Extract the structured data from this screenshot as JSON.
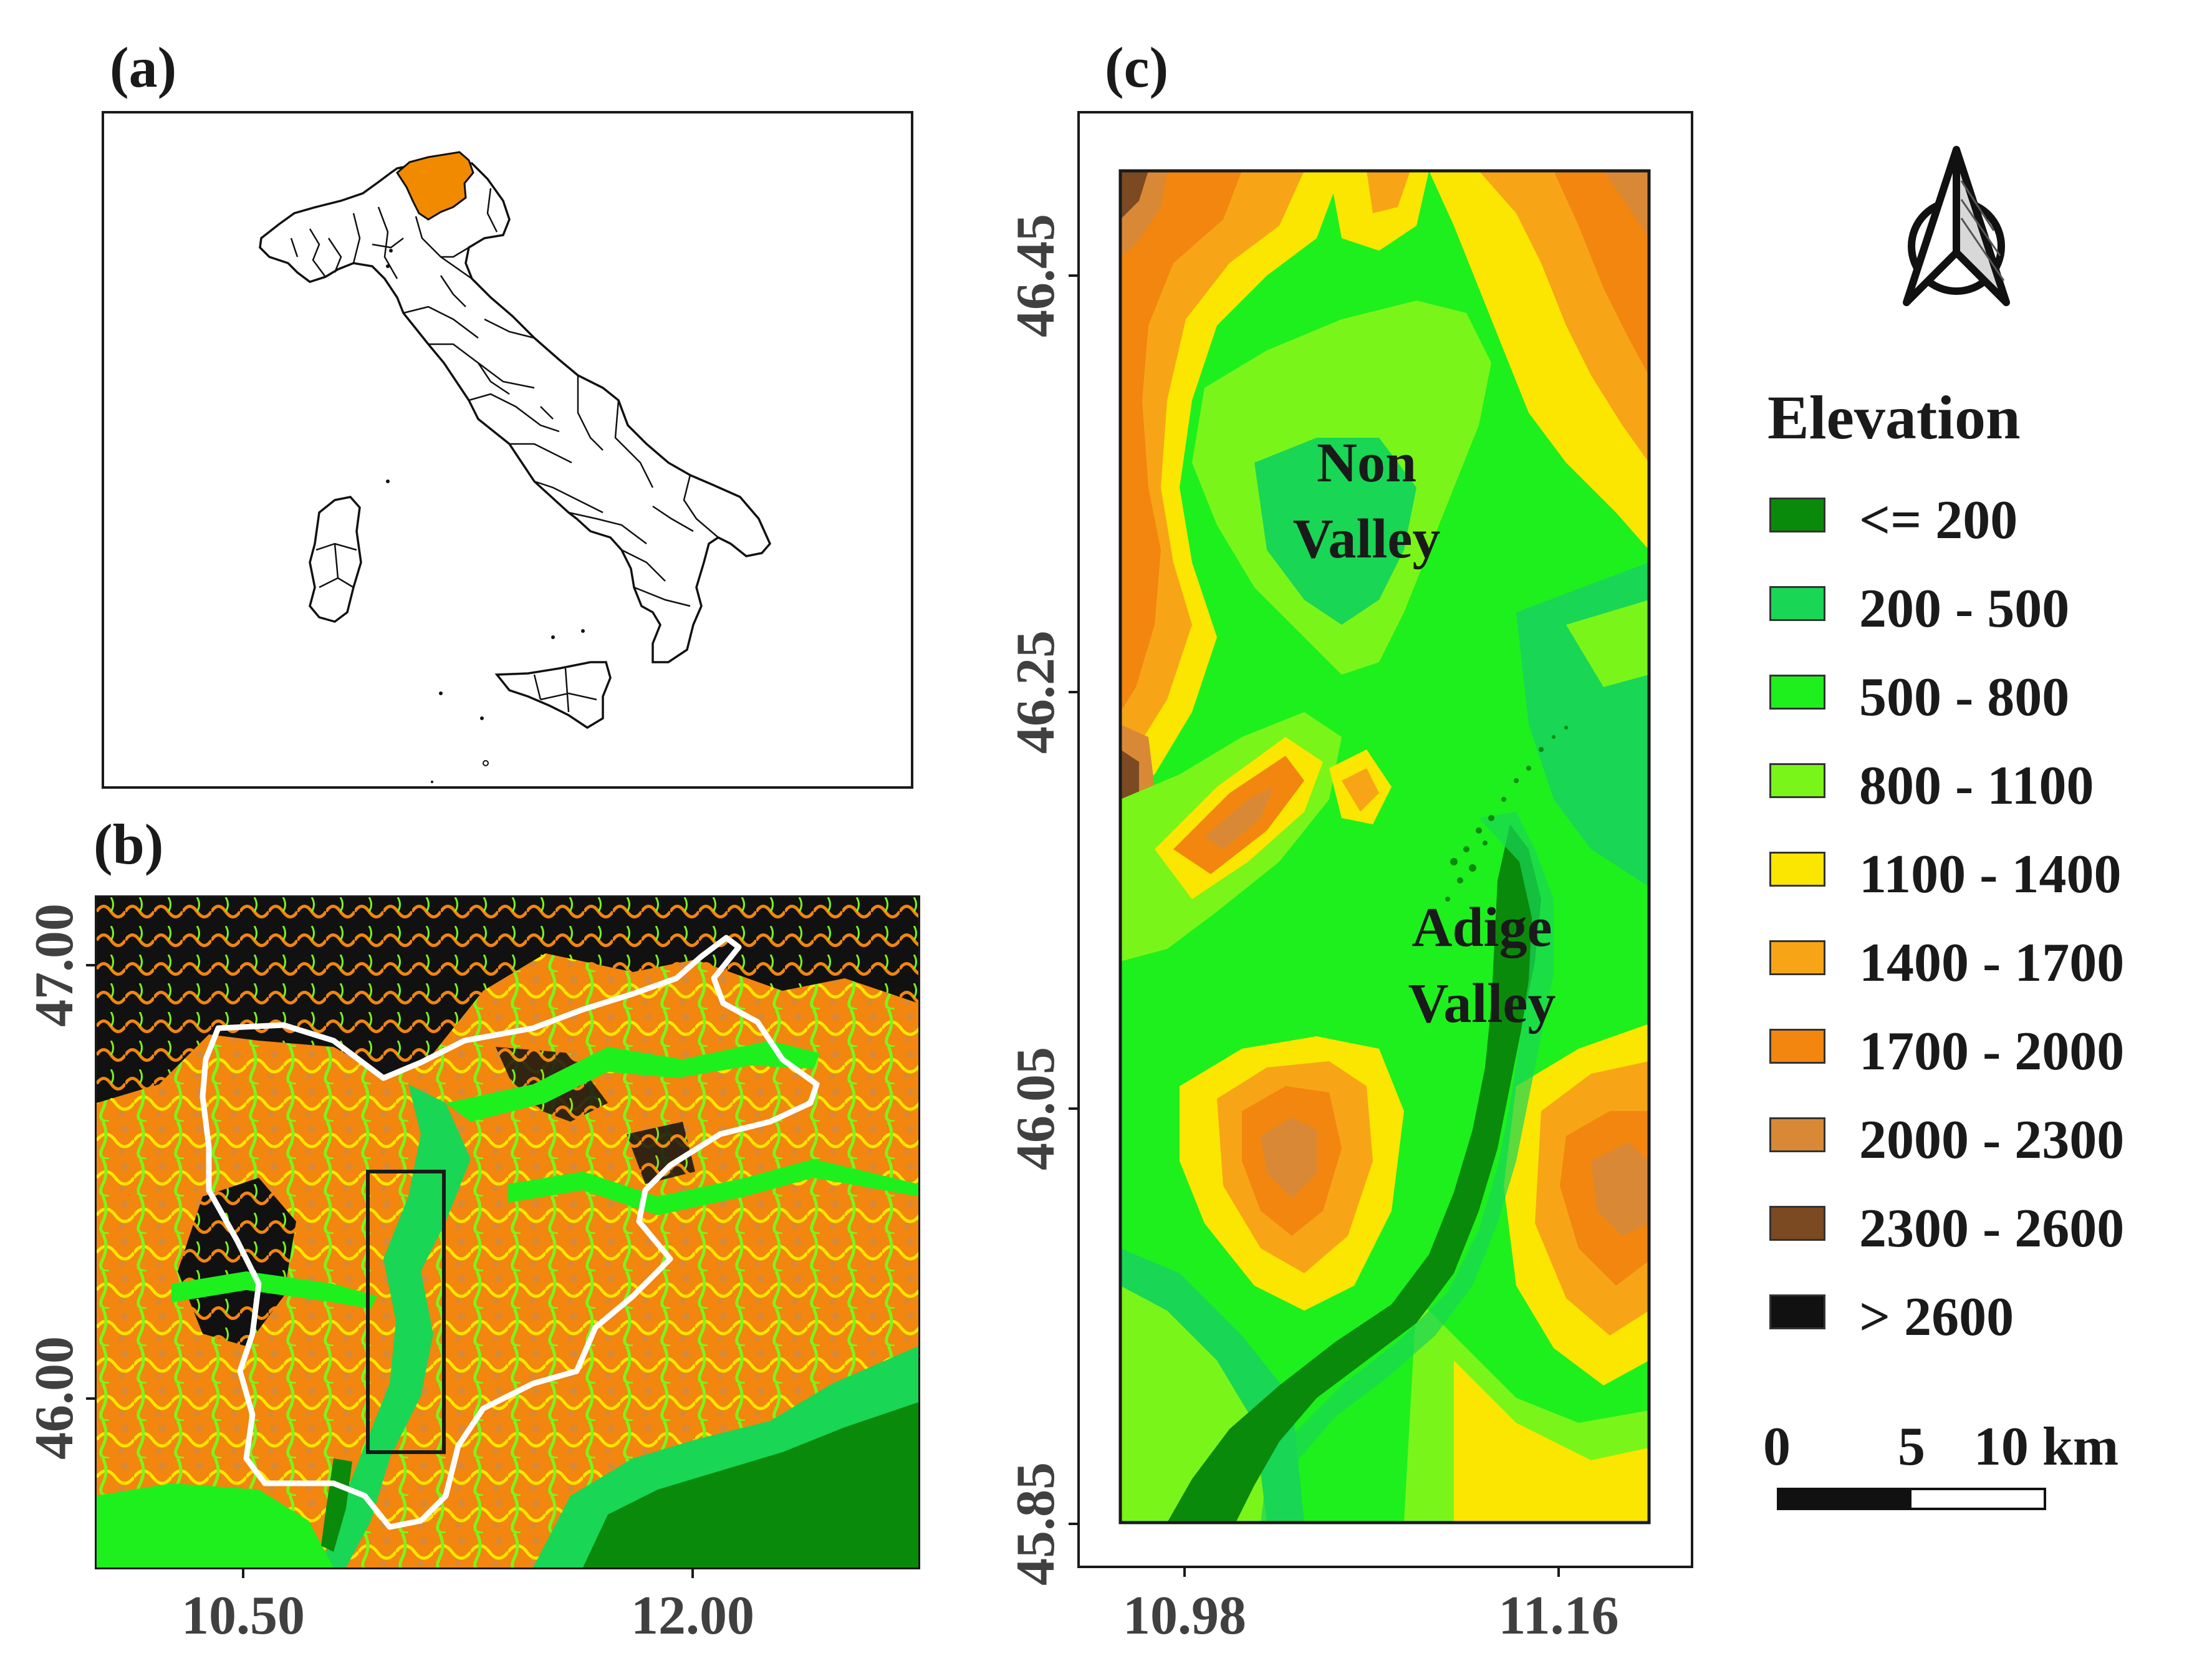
{
  "panels": {
    "a": {
      "label": "(a)",
      "highlighted_region_color": "#f28a00"
    },
    "b": {
      "label": "(b)",
      "y_ticks": [
        "47.00",
        "46.00"
      ],
      "x_ticks": [
        "10.50",
        "12.00"
      ]
    },
    "c": {
      "label": "(c)",
      "y_ticks": [
        "46.45",
        "46.25",
        "46.05",
        "45.85"
      ],
      "x_ticks": [
        "10.98",
        "11.16"
      ],
      "places": [
        {
          "line1": "Non",
          "line2": "Valley"
        },
        {
          "line1": "Adige",
          "line2": "Valley"
        }
      ]
    }
  },
  "north_arrow": {
    "icon": "north-arrow-icon"
  },
  "legend": {
    "title": "Elevation",
    "classes": [
      {
        "label": "<= 200",
        "color": "#0a8a0a"
      },
      {
        "label": "200 - 500",
        "color": "#19d655"
      },
      {
        "label": "500 - 800",
        "color": "#1ef01e"
      },
      {
        "label": "800 - 1100",
        "color": "#7af51a"
      },
      {
        "label": "1100 - 1400",
        "color": "#fae600"
      },
      {
        "label": "1400 - 1700",
        "color": "#f7a516"
      },
      {
        "label": "1700 - 2000",
        "color": "#f2860e"
      },
      {
        "label": "2000 - 2300",
        "color": "#d98936"
      },
      {
        "label": "2300 - 2600",
        "color": "#7b4a22"
      },
      {
        "label": "> 2600",
        "color": "#111111"
      }
    ]
  },
  "scale_bar": {
    "labels": [
      "0",
      "5",
      "10 km"
    ]
  }
}
